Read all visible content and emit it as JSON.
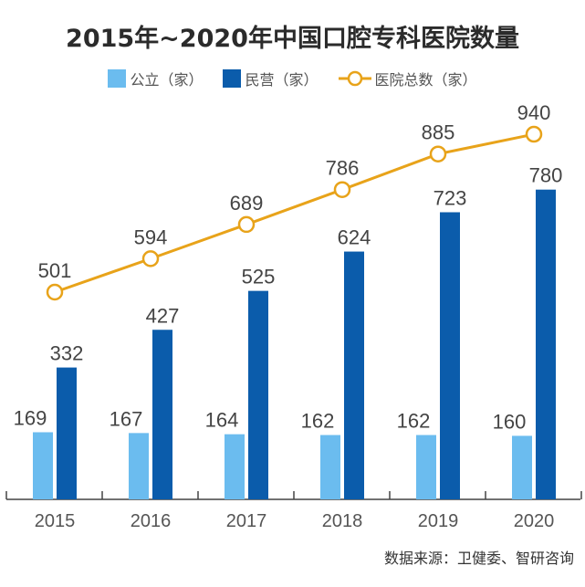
{
  "chart_data": {
    "type": "bar",
    "title": "2015年~2020年中国口腔专科医院数量",
    "categories": [
      "2015",
      "2016",
      "2017",
      "2018",
      "2019",
      "2020"
    ],
    "series": [
      {
        "name": "公立（家）",
        "type": "bar",
        "color": "#6bbcef",
        "values": [
          169,
          167,
          164,
          162,
          162,
          160
        ]
      },
      {
        "name": "民营（家）",
        "type": "bar",
        "color": "#0b5cab",
        "values": [
          332,
          427,
          525,
          624,
          723,
          780
        ]
      },
      {
        "name": "医院总数（家）",
        "type": "line",
        "color": "#e8a31a",
        "values": [
          501,
          594,
          689,
          786,
          885,
          940
        ]
      }
    ],
    "legend_position": "top",
    "grid": false,
    "source": "数据来源：卫健委、智研咨询"
  }
}
